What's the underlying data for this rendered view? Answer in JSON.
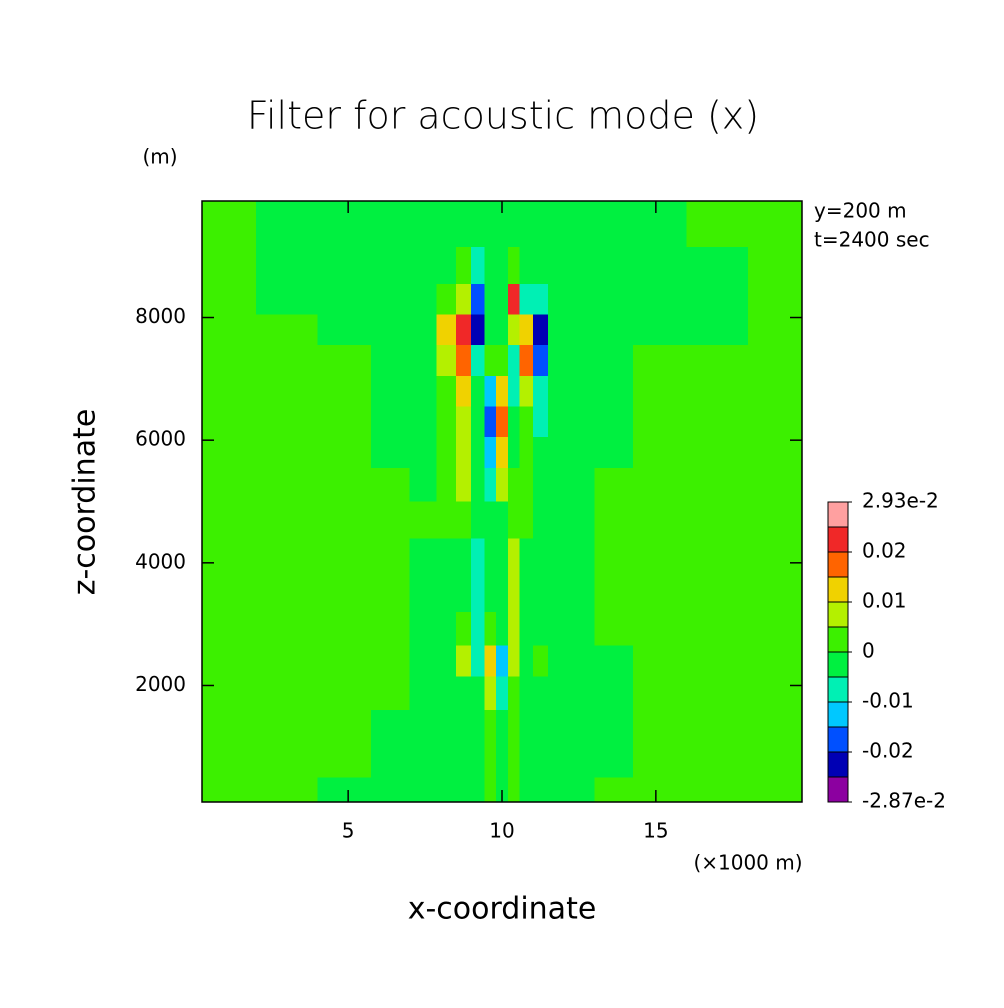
{
  "chart_data": {
    "type": "contour",
    "title": "Filter for acoustic mode (x)",
    "x_label": "x-coordinate",
    "x_unit": "(×1000 m)",
    "y_label": "z-coordinate",
    "y_unit": "(m)",
    "annotations": [
      "y=200 m",
      "t=2400 sec"
    ],
    "xlim": [
      0.25,
      19.75
    ],
    "ylim": [
      100,
      9900
    ],
    "xticks": [
      5,
      10,
      15
    ],
    "yticks": [
      2000,
      4000,
      6000,
      8000
    ],
    "x": [
      1,
      3,
      5,
      6.5,
      7.5,
      8.25,
      8.75,
      9.25,
      9.6,
      10,
      10.4,
      10.75,
      11.25,
      11.75,
      12.5,
      13.5,
      15,
      17,
      19
    ],
    "y": [
      9500,
      8800,
      8300,
      7800,
      7300,
      6800,
      6300,
      5800,
      5300,
      4700,
      4100,
      3500,
      2900,
      2400,
      1900,
      1300,
      700,
      300
    ],
    "values": [
      [
        0.002,
        -0.002,
        -0.002,
        -0.002,
        -0.002,
        -0.002,
        -0.002,
        -0.002,
        -0.002,
        -0.002,
        -0.002,
        -0.002,
        -0.002,
        -0.002,
        -0.002,
        -0.002,
        -0.002,
        0.002,
        0.002
      ],
      [
        0.002,
        -0.002,
        -0.002,
        -0.002,
        -0.002,
        -0.002,
        0.004,
        -0.006,
        -0.002,
        -0.002,
        0.004,
        -0.004,
        -0.002,
        -0.002,
        -0.002,
        -0.002,
        -0.002,
        -0.002,
        0.002
      ],
      [
        0.002,
        -0.002,
        -0.002,
        -0.002,
        -0.002,
        0.004,
        0.008,
        -0.018,
        -0.002,
        -0.002,
        0.022,
        -0.008,
        -0.006,
        -0.002,
        -0.002,
        -0.002,
        -0.002,
        -0.002,
        0.002
      ],
      [
        0.002,
        0.002,
        -0.002,
        -0.002,
        -0.002,
        0.012,
        0.024,
        -0.022,
        -0.002,
        -0.002,
        0.008,
        0.014,
        -0.024,
        -0.004,
        -0.002,
        -0.002,
        -0.002,
        -0.002,
        0.002
      ],
      [
        0.002,
        0.002,
        0.002,
        -0.002,
        -0.002,
        0.008,
        0.018,
        -0.008,
        0.004,
        0.004,
        -0.006,
        0.016,
        -0.018,
        -0.004,
        -0.002,
        -0.002,
        0.002,
        0.002,
        0.002
      ],
      [
        0.002,
        0.002,
        0.002,
        -0.002,
        -0.002,
        0.004,
        0.012,
        -0.004,
        -0.014,
        0.012,
        -0.006,
        0.006,
        -0.01,
        -0.002,
        -0.002,
        -0.002,
        0.002,
        0.002,
        0.002
      ],
      [
        0.002,
        0.002,
        0.002,
        -0.002,
        -0.002,
        0.002,
        0.008,
        -0.002,
        -0.018,
        0.018,
        -0.004,
        0.004,
        -0.006,
        -0.002,
        -0.002,
        -0.002,
        0.002,
        0.002,
        0.002
      ],
      [
        0.002,
        0.002,
        0.002,
        -0.002,
        -0.002,
        0.002,
        0.006,
        -0.002,
        -0.012,
        0.014,
        -0.003,
        0.002,
        -0.004,
        -0.002,
        -0.002,
        -0.002,
        0.002,
        0.002,
        0.002
      ],
      [
        0.002,
        0.002,
        0.002,
        0.002,
        -0.002,
        0.002,
        0.006,
        -0.002,
        -0.006,
        0.008,
        0.004,
        0.002,
        -0.004,
        -0.002,
        -0.002,
        0.002,
        0.002,
        0.002,
        0.002
      ],
      [
        0.002,
        0.002,
        0.002,
        0.002,
        0.002,
        0.002,
        0.004,
        -0.002,
        -0.002,
        -0.002,
        0.002,
        0.002,
        -0.004,
        -0.002,
        -0.002,
        0.002,
        0.002,
        0.002,
        0.002
      ],
      [
        0.002,
        0.002,
        0.002,
        0.002,
        -0.002,
        -0.002,
        -0.002,
        -0.006,
        -0.002,
        -0.002,
        0.006,
        -0.002,
        -0.002,
        -0.002,
        -0.002,
        0.002,
        0.002,
        0.002,
        0.002
      ],
      [
        0.002,
        0.002,
        0.002,
        0.002,
        -0.002,
        -0.002,
        -0.002,
        -0.008,
        -0.002,
        -0.002,
        0.008,
        -0.002,
        -0.002,
        -0.002,
        -0.002,
        0.002,
        0.002,
        0.002,
        0.002
      ],
      [
        0.002,
        0.002,
        0.002,
        0.002,
        -0.002,
        -0.002,
        0.004,
        -0.006,
        0.004,
        -0.002,
        0.006,
        -0.004,
        -0.002,
        -0.002,
        -0.002,
        0.002,
        0.002,
        0.002,
        0.002
      ],
      [
        0.002,
        0.002,
        0.002,
        0.002,
        -0.002,
        -0.002,
        0.006,
        -0.008,
        0.012,
        -0.012,
        0.006,
        -0.002,
        0.004,
        -0.002,
        -0.002,
        -0.002,
        0.002,
        0.002,
        0.002
      ],
      [
        0.002,
        0.002,
        0.002,
        0.002,
        -0.002,
        -0.002,
        -0.002,
        -0.004,
        0.006,
        -0.006,
        0.004,
        -0.002,
        -0.002,
        -0.002,
        -0.002,
        -0.002,
        0.002,
        0.002,
        0.002
      ],
      [
        0.002,
        0.002,
        0.002,
        -0.002,
        -0.002,
        -0.002,
        -0.002,
        -0.002,
        0.002,
        -0.002,
        0.002,
        -0.002,
        -0.002,
        -0.002,
        -0.002,
        -0.002,
        0.002,
        0.002,
        0.002
      ],
      [
        0.002,
        0.002,
        0.002,
        -0.002,
        -0.002,
        -0.002,
        -0.002,
        -0.002,
        0.002,
        -0.002,
        0.002,
        -0.002,
        -0.002,
        -0.002,
        -0.002,
        -0.002,
        0.002,
        0.002,
        0.002
      ],
      [
        0.002,
        0.002,
        -0.002,
        -0.002,
        -0.002,
        -0.002,
        -0.002,
        -0.002,
        0.002,
        -0.002,
        0.002,
        -0.002,
        -0.002,
        -0.002,
        -0.002,
        0.002,
        0.002,
        0.002,
        0.002
      ]
    ],
    "colorbar": {
      "levels": [
        -0.0287,
        -0.025,
        -0.02,
        -0.015,
        -0.01,
        -0.005,
        0,
        0.005,
        0.01,
        0.015,
        0.02,
        0.025,
        0.0293
      ],
      "colors": [
        "#8c00a0",
        "#0000b4",
        "#0050ff",
        "#00c8ff",
        "#00f0b4",
        "#00f040",
        "#3cf000",
        "#b4f000",
        "#f0d200",
        "#ff6400",
        "#f02828",
        "#ffa0a0"
      ],
      "ticks": [
        {
          "value": 0.0293,
          "label": "2.93e-2"
        },
        0.02,
        0.01,
        0,
        -0.01,
        -0.02,
        {
          "value": -0.0287,
          "label": "-2.87e-2"
        }
      ]
    }
  }
}
